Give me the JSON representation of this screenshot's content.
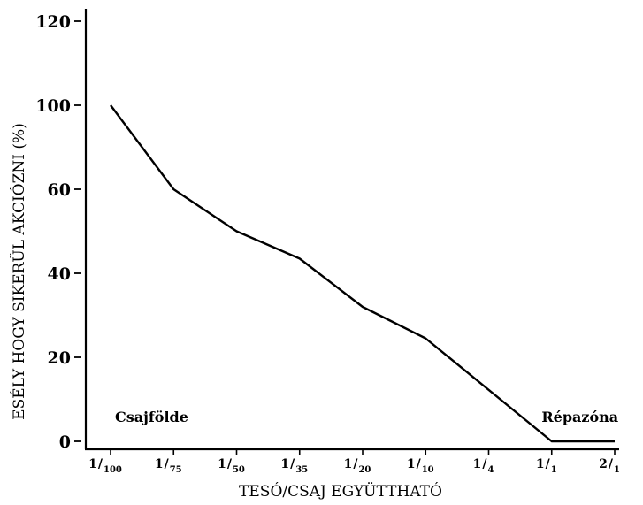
{
  "chart_data": {
    "type": "line",
    "title": "",
    "xlabel": "TESÓ/CSAJ EGYÜTTHATÓ",
    "ylabel": "ESÉLY HOGY SIKERÜL AKCIÓZNI (%)",
    "x_ticks": [
      {
        "num": "1",
        "den": "100"
      },
      {
        "num": "1",
        "den": "75"
      },
      {
        "num": "1",
        "den": "50"
      },
      {
        "num": "1",
        "den": "35"
      },
      {
        "num": "1",
        "den": "20"
      },
      {
        "num": "1",
        "den": "10"
      },
      {
        "num": "1",
        "den": "4"
      },
      {
        "num": "1",
        "den": "1"
      },
      {
        "num": "2",
        "den": "1"
      }
    ],
    "y_ticks": [
      "120",
      "100",
      "60",
      "40",
      "20",
      "0"
    ],
    "series": [
      {
        "x": [
          "1/100",
          "1/75",
          "1/50",
          "1/35",
          "1/20",
          "1/10",
          "1/1",
          "2/1"
        ],
        "values": [
          100,
          60,
          50,
          43.5,
          32,
          24.5,
          0,
          0
        ]
      }
    ],
    "annotations": [
      {
        "text": "Csajfölde",
        "x": "1/100",
        "y": 8
      },
      {
        "text": "Répazóna",
        "x": "1/1",
        "y": 8
      }
    ],
    "grid": false,
    "line_color": "#000000"
  }
}
